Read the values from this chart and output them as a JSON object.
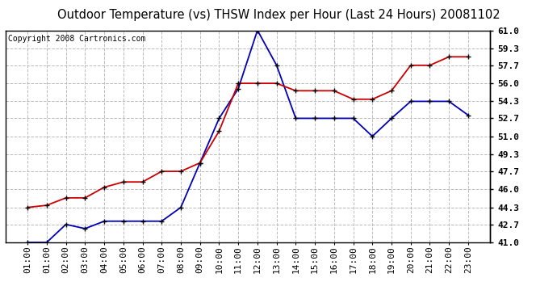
{
  "title": "Outdoor Temperature (vs) THSW Index per Hour (Last 24 Hours) 20081102",
  "copyright_text": "Copyright 2008 Cartronics.com",
  "hours": [
    "01:00",
    "01:00",
    "02:00",
    "03:00",
    "04:00",
    "05:00",
    "06:00",
    "07:00",
    "08:00",
    "09:00",
    "10:00",
    "11:00",
    "12:00",
    "13:00",
    "14:00",
    "15:00",
    "16:00",
    "17:00",
    "18:00",
    "19:00",
    "20:00",
    "21:00",
    "22:00",
    "23:00"
  ],
  "blue_data": [
    41.0,
    41.0,
    42.7,
    42.3,
    43.0,
    43.0,
    43.0,
    43.0,
    44.3,
    48.5,
    52.7,
    55.5,
    61.0,
    57.7,
    52.7,
    52.7,
    52.7,
    52.7,
    51.0,
    52.7,
    54.3,
    54.3,
    54.3,
    53.0
  ],
  "red_data": [
    44.3,
    44.5,
    45.2,
    45.2,
    46.2,
    46.7,
    46.7,
    47.7,
    47.7,
    48.5,
    51.5,
    56.0,
    56.0,
    56.0,
    55.3,
    55.3,
    55.3,
    54.5,
    54.5,
    55.3,
    57.7,
    57.7,
    58.5,
    58.5
  ],
  "ylim": [
    41.0,
    61.0
  ],
  "yticks": [
    41.0,
    42.7,
    44.3,
    46.0,
    47.7,
    49.3,
    51.0,
    52.7,
    54.3,
    56.0,
    57.7,
    59.3,
    61.0
  ],
  "bg_color": "#ffffff",
  "grid_color": "#bbbbbb",
  "blue_color": "#0000bb",
  "red_color": "#cc0000",
  "title_fontsize": 10.5,
  "tick_fontsize": 8,
  "copyright_fontsize": 7
}
